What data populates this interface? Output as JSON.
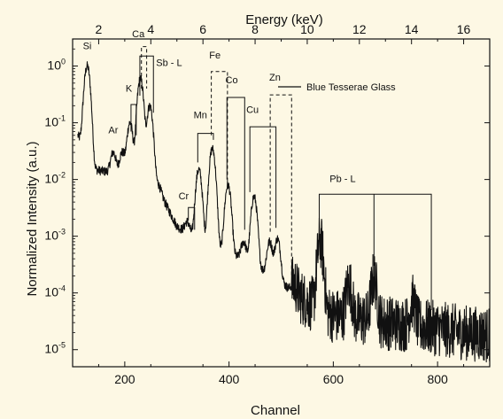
{
  "chart_data": {
    "type": "line",
    "title": "",
    "xlabel": "Channel",
    "x2label": "Energy (keV)",
    "ylabel": "Normalized Intensity (a.u.)",
    "xlim": [
      100,
      900
    ],
    "x2lim": [
      1.0,
      17.0
    ],
    "ylim": [
      5e-06,
      3
    ],
    "y_scale": "log",
    "grid": false,
    "legend_position": "top-right",
    "x_ticks": [
      {
        "value": 200,
        "label": "200"
      },
      {
        "value": 400,
        "label": "400"
      },
      {
        "value": 600,
        "label": "600"
      },
      {
        "value": 800,
        "label": "800"
      }
    ],
    "x2_ticks": [
      {
        "value": 2,
        "label": "2"
      },
      {
        "value": 4,
        "label": "4"
      },
      {
        "value": 6,
        "label": "6"
      },
      {
        "value": 8,
        "label": "8"
      },
      {
        "value": 10,
        "label": "10"
      },
      {
        "value": 12,
        "label": "12"
      },
      {
        "value": 14,
        "label": "14"
      },
      {
        "value": 16,
        "label": "16"
      }
    ],
    "y_ticks": [
      {
        "value": 1,
        "base": "10",
        "exp": "0"
      },
      {
        "value": 0.1,
        "base": "10",
        "exp": "-1"
      },
      {
        "value": 0.01,
        "base": "10",
        "exp": "-2"
      },
      {
        "value": 0.001,
        "base": "10",
        "exp": "-3"
      },
      {
        "value": 0.0001,
        "base": "10",
        "exp": "-4"
      },
      {
        "value": 1e-05,
        "base": "10",
        "exp": "-5"
      }
    ],
    "series": [
      {
        "name": "Blue Tesserae Glass",
        "color": "#111111",
        "baseline": [
          [
            110,
            0.06
          ],
          [
            140,
            0.015
          ],
          [
            200,
            0.012
          ],
          [
            260,
            0.008
          ],
          [
            300,
            0.0015
          ],
          [
            340,
            0.0008
          ],
          [
            400,
            0.0005
          ],
          [
            450,
            0.0003
          ],
          [
            500,
            0.00015
          ],
          [
            550,
            7e-05
          ],
          [
            600,
            4e-05
          ],
          [
            650,
            3.5e-05
          ],
          [
            700,
            3e-05
          ],
          [
            780,
            2.5e-05
          ],
          [
            850,
            2e-05
          ],
          [
            900,
            1.8e-05
          ]
        ],
        "peaks": [
          {
            "x": 128,
            "y": 1.0
          },
          {
            "x": 160,
            "y": 0.012
          },
          {
            "x": 178,
            "y": 0.03
          },
          {
            "x": 195,
            "y": 0.03
          },
          {
            "x": 210,
            "y": 0.1
          },
          {
            "x": 230,
            "y": 0.6
          },
          {
            "x": 248,
            "y": 0.2
          },
          {
            "x": 265,
            "y": 0.008
          },
          {
            "x": 320,
            "y": 0.0018
          },
          {
            "x": 342,
            "y": 0.015
          },
          {
            "x": 368,
            "y": 0.035
          },
          {
            "x": 398,
            "y": 0.008
          },
          {
            "x": 428,
            "y": 0.0008
          },
          {
            "x": 448,
            "y": 0.005
          },
          {
            "x": 478,
            "y": 0.0008
          },
          {
            "x": 493,
            "y": 0.0009
          },
          {
            "x": 525,
            "y": 0.00015
          },
          {
            "x": 575,
            "y": 0.0008
          },
          {
            "x": 630,
            "y": 0.00015
          },
          {
            "x": 678,
            "y": 0.00018
          },
          {
            "x": 752,
            "y": 7e-05
          }
        ]
      }
    ],
    "annotations": [
      {
        "label": "Si",
        "x": 128,
        "y": 2.0,
        "bracket": null
      },
      {
        "label": "Ar",
        "x": 178,
        "y": 0.065,
        "bracket": null
      },
      {
        "label": "K",
        "x": 208,
        "y": 0.35,
        "bracket": {
          "x1": 212,
          "x2": 222,
          "y": 0.21,
          "y_end": [
            0.07,
            0.06
          ],
          "dashed": false
        }
      },
      {
        "label": "Ca",
        "x": 226,
        "y": 3.2,
        "bracket": {
          "x1": 232,
          "x2": 242,
          "y": 2.2,
          "y_end": [
            0.4,
            0.4
          ],
          "dashed": true
        }
      },
      {
        "label": "Sb - L",
        "x": 285,
        "y": 1.0,
        "bracket": {
          "x1": 229,
          "x2": 255,
          "y": 1.5,
          "y_end": [
            0.3,
            0.15
          ],
          "dashed": false
        }
      },
      {
        "label": "Cr",
        "x": 313,
        "y": 0.0045,
        "bracket": {
          "x1": 322,
          "x2": 334,
          "y": 0.0032,
          "y_end": [
            0.0019,
            0.0013
          ],
          "dashed": false
        }
      },
      {
        "label": "Mn",
        "x": 345,
        "y": 0.12,
        "bracket": {
          "x1": 340,
          "x2": 370,
          "y": 0.065,
          "y_end": [
            0.02,
            0.05
          ],
          "dashed": false
        }
      },
      {
        "label": "Fe",
        "x": 373,
        "y": 1.35,
        "bracket": {
          "x1": 366,
          "x2": 397,
          "y": 0.8,
          "y_end": [
            0.06,
            0.009
          ],
          "dashed": true
        }
      },
      {
        "label": "Co",
        "x": 405,
        "y": 0.5,
        "bracket": {
          "x1": 396,
          "x2": 430,
          "y": 0.28,
          "y_end": [
            0.01,
            0.0013
          ],
          "dashed": false
        }
      },
      {
        "label": "Cu",
        "x": 445,
        "y": 0.15,
        "bracket": {
          "x1": 440,
          "x2": 490,
          "y": 0.085,
          "y_end": [
            0.006,
            0.0014
          ],
          "dashed": false
        }
      },
      {
        "label": "Zn",
        "x": 488,
        "y": 0.55,
        "bracket": {
          "x1": 479,
          "x2": 520,
          "y": 0.31,
          "y_end": [
            0.0012,
            0.0002
          ],
          "dashed": true
        }
      },
      {
        "label": "Pb - L",
        "x": 618,
        "y": 0.009,
        "bracket": {
          "x1": 573,
          "x2": 788,
          "y": 0.0055,
          "y_end": [
            0.0012,
            5e-05
          ],
          "mid": 678,
          "y_mid_end": 0.0003,
          "dashed": false
        }
      }
    ]
  }
}
